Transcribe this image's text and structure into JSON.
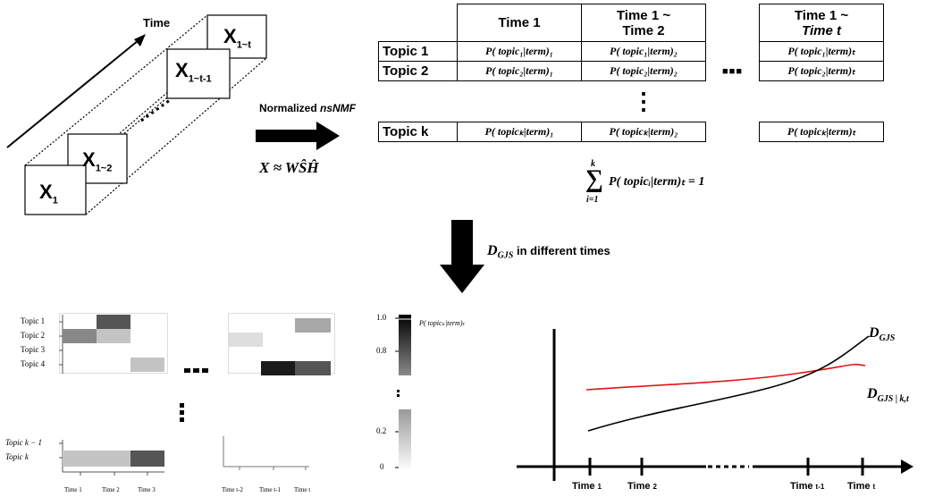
{
  "stack": {
    "time_axis_label": "Time",
    "frames": [
      "X₁",
      "X₁~₂",
      "X₁~t-₁",
      "X₁~t"
    ],
    "frame_main": [
      "X",
      "X",
      "X",
      "X"
    ],
    "frame_sub": [
      "1",
      "1~2",
      "1~t-1",
      "1~t"
    ]
  },
  "arrow_caption": {
    "prefix": "Normalized ",
    "method": "nsNMF",
    "formula": "X ≈ WŜĤ"
  },
  "table": {
    "col_headers": [
      "Time 1",
      "Time 1 ~\nTime 2",
      "Time 1 ~\nTime t"
    ],
    "col_header_1": "Time 1",
    "col_header_2a": "Time 1 ~",
    "col_header_2b": "Time 2",
    "col_header_3a": "Time 1 ~",
    "col_header_3b": "Time t",
    "row_labels": [
      "Topic 1",
      "Topic 2",
      "Topic k"
    ],
    "cells": [
      [
        "P( topic₁|term)₁",
        "P( topic₁|term)₂",
        "P( topic₁|term)ₜ"
      ],
      [
        "P( topic₂|term)₁",
        "P( topic₂|term)₂",
        "P( topic₂|term)ₜ"
      ],
      [
        "P( topicₖ|term)₁",
        "P( topicₖ|term)₂",
        "P( topicₖ|term)ₜ"
      ]
    ],
    "ellipsis_h": "■■■",
    "ellipsis_v": "⋮"
  },
  "sum_formula": {
    "sigma_top": "k",
    "sigma_bottom": "i=1",
    "body": "P( topicᵢ|term)ₜ =  1"
  },
  "down_arrow": {
    "label_symbol": "D",
    "label_sub": "GJS",
    "label_rest": " in different times"
  },
  "heatmap": {
    "topic_labels_top": [
      "Topic 1",
      "Topic 2",
      "Topic 3",
      "Topic 4"
    ],
    "topic_labels_bottom": [
      "Topic k − 1",
      "Topic k"
    ],
    "time_ticks_left": [
      "Time 1",
      "Time 2",
      "Time 3"
    ],
    "time_ticks_right": [
      "Time t-2",
      "Time t-1",
      "Time t"
    ],
    "colorbar_title": "P( topicₖ|term)ₜ",
    "colorbar_ticks_top": [
      "1.0",
      "0.8"
    ],
    "colorbar_ticks_bottom": [
      "0.2",
      "0"
    ],
    "colors": {
      "dark": "#1a1a1a",
      "mid_dark": "#555555",
      "mid": "#888888",
      "light": "#c4c4c4",
      "very_light": "#dedede"
    }
  },
  "line_chart": {
    "time_ticks": [
      "Time 1",
      "Time 2",
      "Time t-1",
      "Time t"
    ],
    "tick_main": [
      "Time",
      "Time",
      "Time",
      "Time"
    ],
    "tick_sub": [
      "1",
      "2",
      "t-1",
      "t"
    ],
    "series_black_label": "D",
    "series_black_sub": "GJS",
    "series_red_label": "D",
    "series_red_sub": "GJS | k,t",
    "colors": {
      "black_series": "#000000",
      "red_series": "#e31414"
    }
  }
}
